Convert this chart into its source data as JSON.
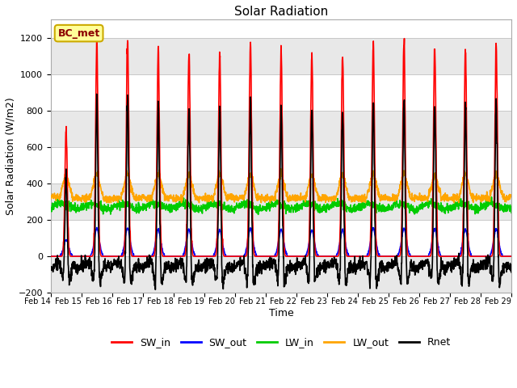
{
  "title": "Solar Radiation",
  "xlabel": "Time",
  "ylabel": "Solar Radiation (W/m2)",
  "station_label": "BC_met",
  "ylim": [
    -200,
    1300
  ],
  "yticks": [
    -200,
    0,
    200,
    400,
    600,
    800,
    1000,
    1200
  ],
  "date_labels": [
    "Feb 14",
    "Feb 15",
    "Feb 16",
    "Feb 17",
    "Feb 18",
    "Feb 19",
    "Feb 20",
    "Feb 21",
    "Feb 22",
    "Feb 23",
    "Feb 24",
    "Feb 25",
    "Feb 26",
    "Feb 27",
    "Feb 28",
    "Feb 29"
  ],
  "series": {
    "SW_in": {
      "color": "#FF0000",
      "lw": 1.2
    },
    "SW_out": {
      "color": "#0000FF",
      "lw": 1.2
    },
    "LW_in": {
      "color": "#00CC00",
      "lw": 1.2
    },
    "LW_out": {
      "color": "#FFA500",
      "lw": 1.2
    },
    "Rnet": {
      "color": "#000000",
      "lw": 1.2
    }
  },
  "background_color": "#FFFFFF",
  "grid_color": "#C8C8C8",
  "band_color": "#E8E8E8",
  "n_days": 15,
  "points_per_day": 144,
  "sw_in_peaks": [
    700,
    1180,
    1200,
    1130,
    1125,
    1110,
    1170,
    1130,
    1110,
    1110,
    1180,
    1170,
    1150,
    1140,
    1160
  ]
}
